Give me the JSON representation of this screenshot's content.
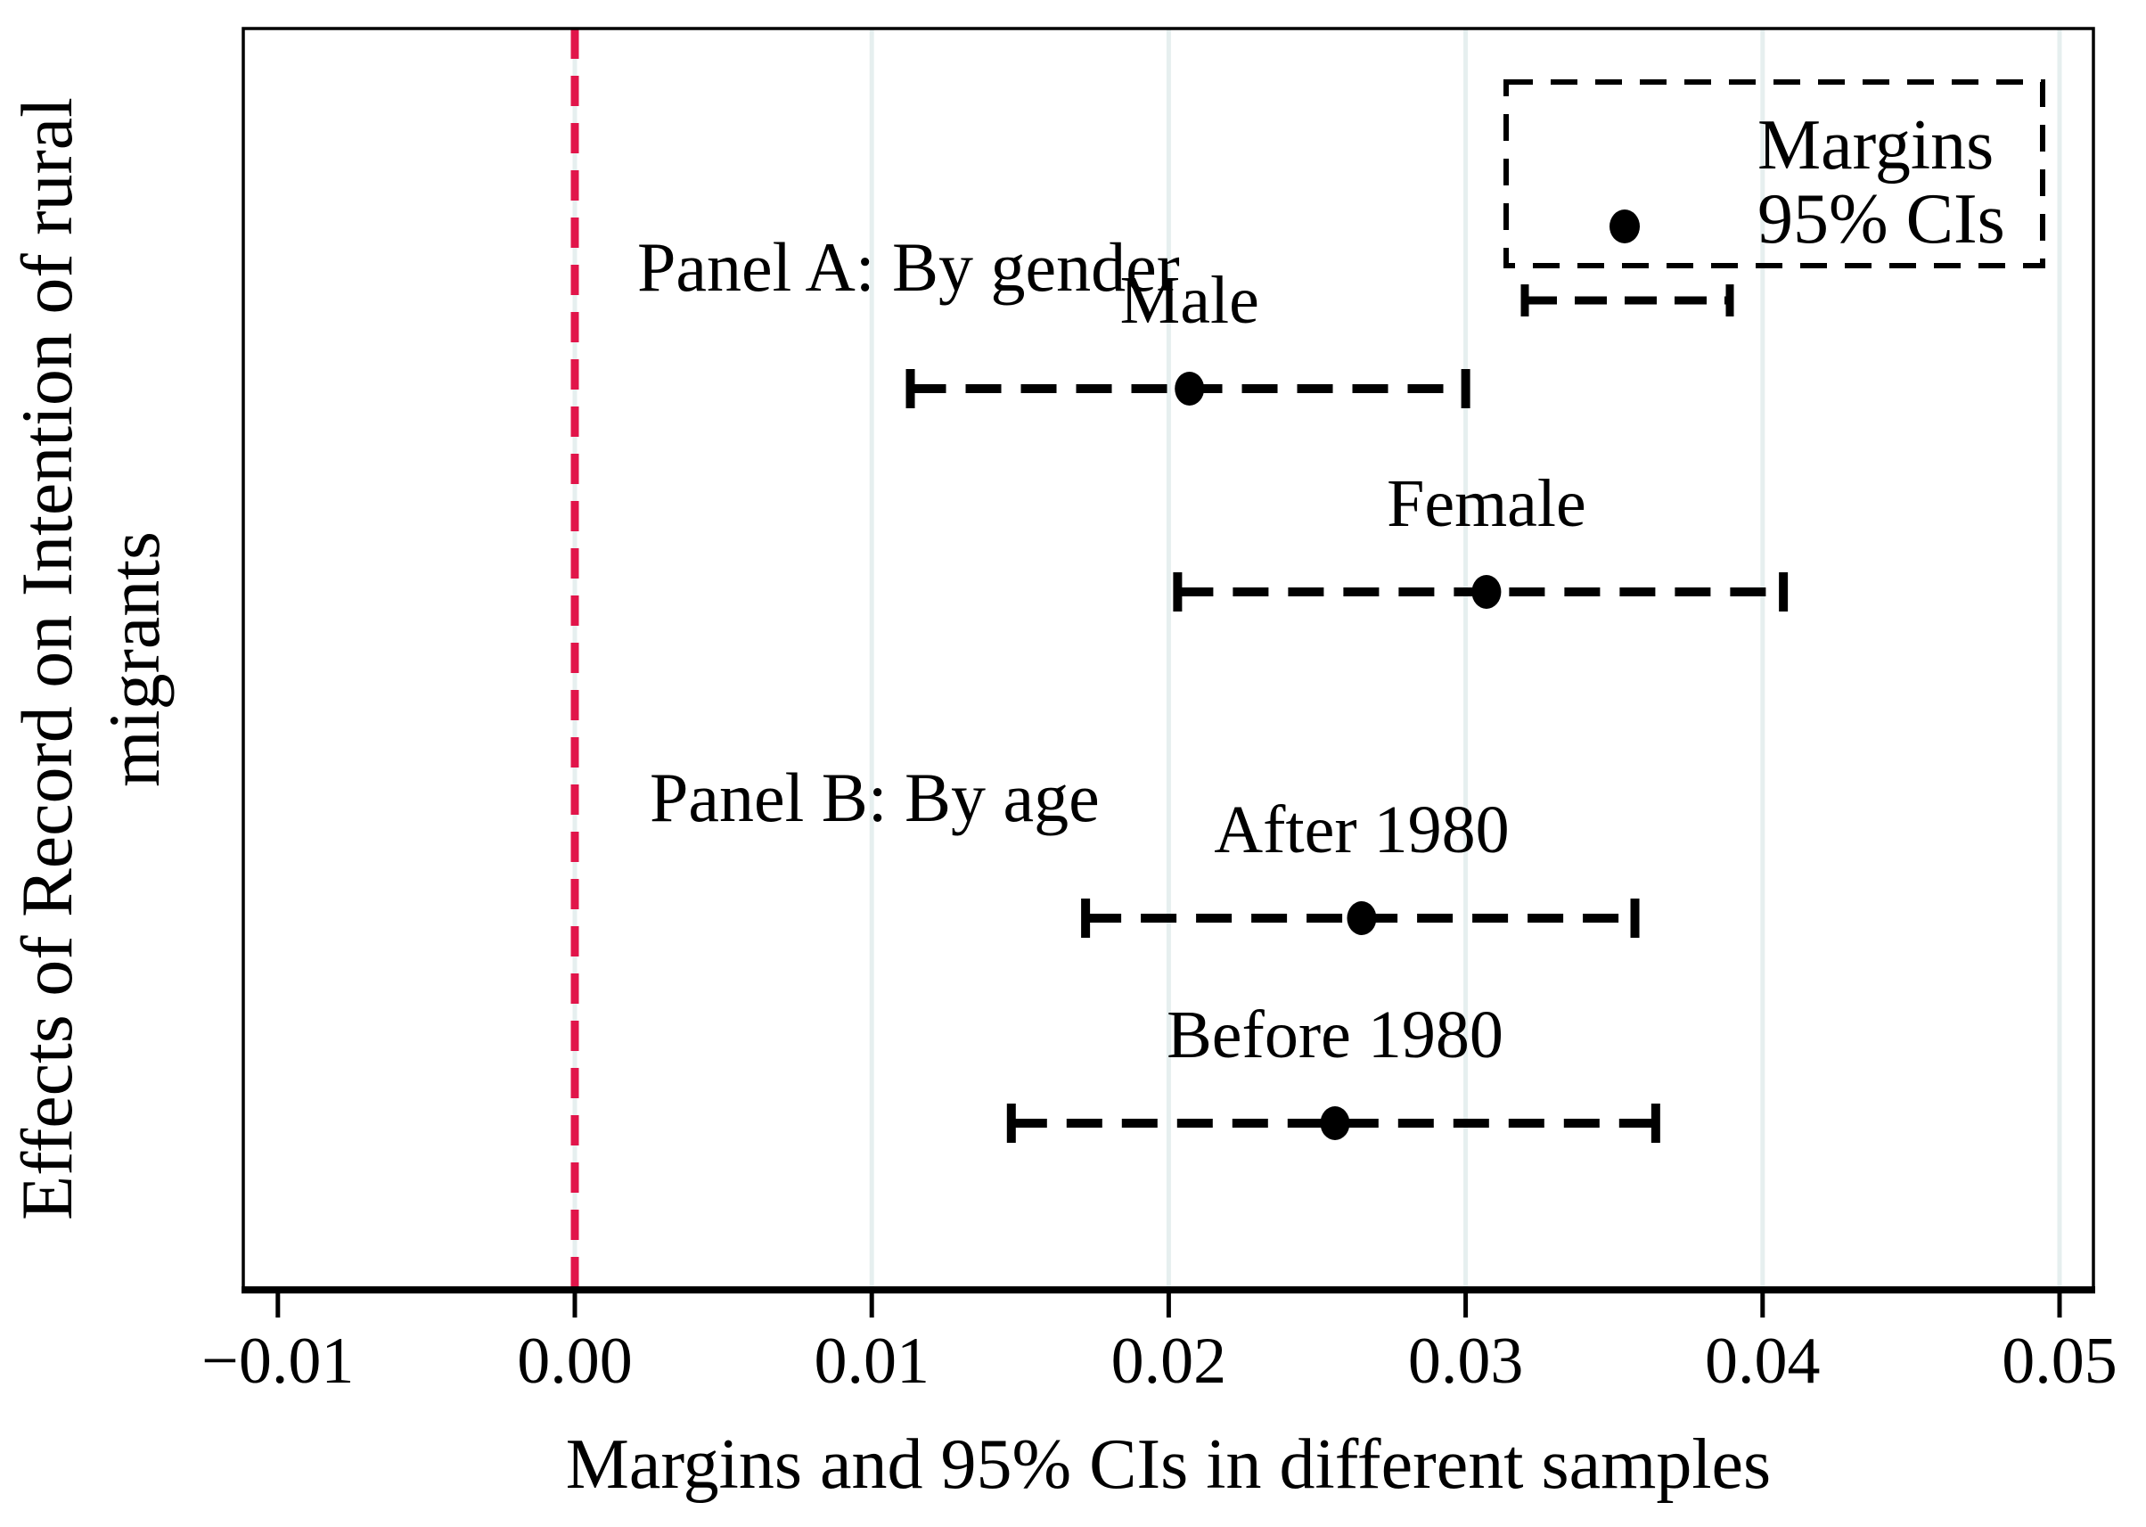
{
  "figure": {
    "y_axis_title_line1": "Effects of Record on Intention of rural",
    "y_axis_title_line2": "migrants",
    "x_axis_title": "Margins and 95% CIs in different samples"
  },
  "legend": {
    "position": "top-right",
    "border_style": "dashed",
    "items": [
      {
        "symbol": "dot-marker",
        "label": "Margins"
      },
      {
        "symbol": "dashed-error-bar",
        "label": "95% CIs"
      }
    ]
  },
  "colors": {
    "reference_line": "#e1154a",
    "gridline": "#e6efef",
    "marker": "#000000",
    "text": "#000000",
    "background": "#ffffff"
  },
  "chart_data": {
    "type": "scatter",
    "subtype": "coefficient-plot-with-95CI-error-bars",
    "orientation": "horizontal",
    "title": "",
    "xlabel": "Margins and 95% CIs in different samples",
    "ylabel": "Effects of Record on Intention of rural migrants",
    "xlim": [
      -0.0112,
      0.0512
    ],
    "x_ticks": [
      -0.01,
      0.0,
      0.01,
      0.02,
      0.03,
      0.04,
      0.05
    ],
    "x_tick_labels": [
      "−0.01",
      "0.00",
      "0.01",
      "0.02",
      "0.03",
      "0.04",
      "0.05"
    ],
    "grid": "light vertical gridlines at 0.00 through 0.05",
    "reference_line": {
      "x": 0.0,
      "style": "dashed",
      "color": "#e1154a"
    },
    "legend_entries": [
      "Margins",
      "95% CIs"
    ],
    "groups": [
      {
        "heading": "Panel A: By gender",
        "points": [
          {
            "label": "Male",
            "margin": 0.0207,
            "ci_low": 0.0113,
            "ci_high": 0.03
          },
          {
            "label": "Female",
            "margin": 0.0307,
            "ci_low": 0.0203,
            "ci_high": 0.0407
          }
        ]
      },
      {
        "heading": "Panel B: By age",
        "points": [
          {
            "label": "After 1980",
            "margin": 0.0265,
            "ci_low": 0.0172,
            "ci_high": 0.0357
          },
          {
            "label": "Before 1980",
            "margin": 0.0256,
            "ci_low": 0.0147,
            "ci_high": 0.0364
          }
        ]
      }
    ]
  }
}
